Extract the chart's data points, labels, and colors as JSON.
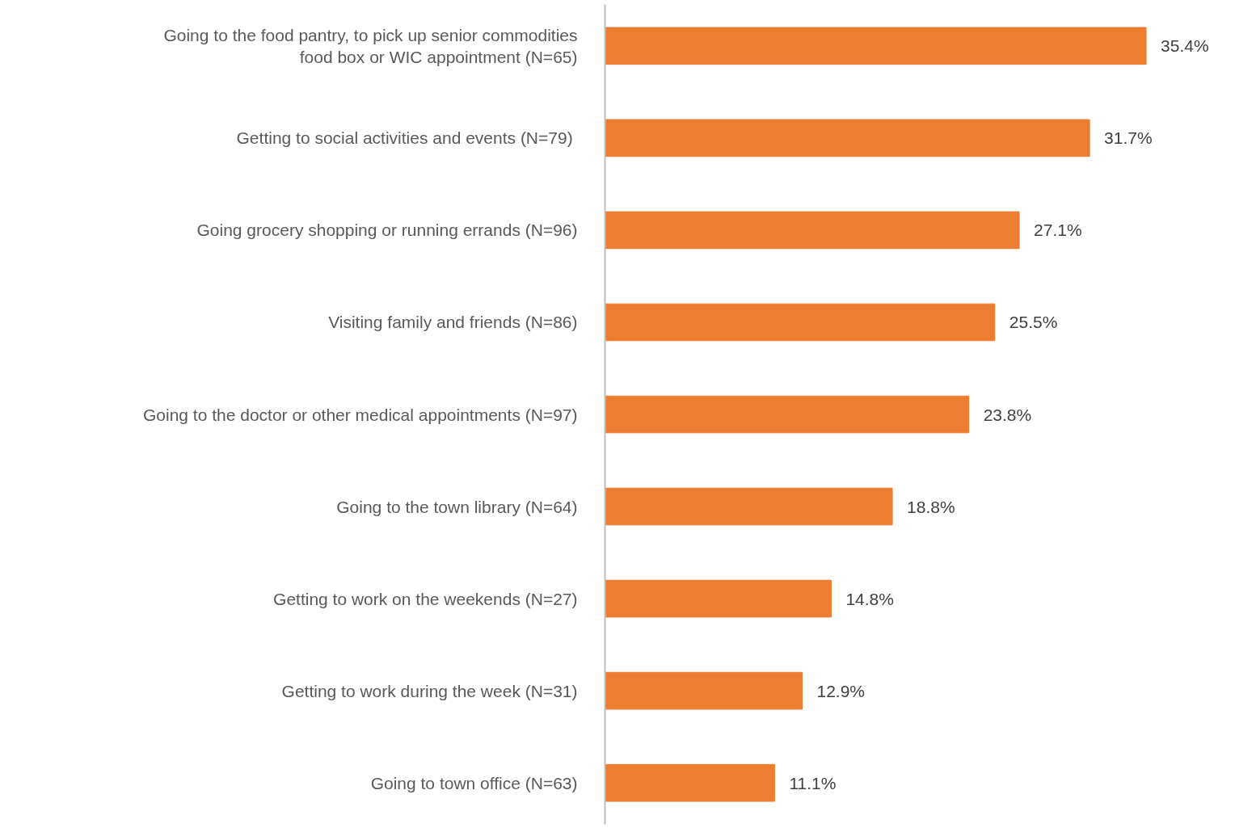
{
  "chart_data": {
    "type": "bar",
    "orientation": "horizontal",
    "categories": [
      "Going to the food pantry, to pick up senior commodities\nfood box or WIC appointment (N=65)",
      "Getting to social activities and events  (N=79)",
      "Going grocery shopping or running errands (N=96)",
      "Visiting family and friends (N=86)",
      "Going to the doctor or other medical appointments (N=97)",
      "Going to the town library (N=64)",
      "Getting to work on the weekends (N=27)",
      "Getting to work during the week (N=31)",
      "Going to town office (N=63)"
    ],
    "values": [
      35.4,
      31.7,
      27.1,
      25.5,
      23.8,
      18.8,
      14.8,
      12.9,
      11.1
    ],
    "value_labels": [
      "35.4%",
      "31.7%",
      "27.1%",
      "25.5%",
      "23.8%",
      "18.8%",
      "14.8%",
      "12.9%",
      "11.1%"
    ],
    "color": "#ed7d31"
  }
}
